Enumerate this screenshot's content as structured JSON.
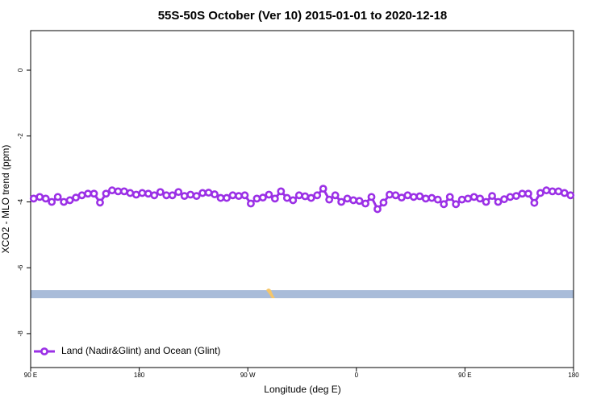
{
  "chart_data": {
    "type": "line",
    "title": "55S-50S October (Ver 10)   2015-01-01 to 2020-12-18",
    "x_label": "Longitude (deg E)",
    "y_label": "XCO2 - MLO trend (ppm)",
    "xlim": [
      90,
      540
    ],
    "ylim": [
      -9.03,
      1.2
    ],
    "xticks": [
      {
        "value": 90,
        "label": "90 E"
      },
      180,
      {
        "value": 270,
        "label": "90 W"
      },
      {
        "value": 360,
        "label": "0"
      },
      {
        "value": 450,
        "label": "90 E"
      },
      {
        "value": 540,
        "label": "180"
      }
    ],
    "yticks": [
      0,
      -2,
      -4,
      -6,
      -8
    ],
    "legend_position": "bottom-left",
    "series": [
      {
        "name": "Land (Nadir&Glint) and Ocean (Glint)",
        "color": "#9b30e6",
        "x": [
          92.5,
          97.5,
          102.5,
          107.5,
          112.5,
          117.5,
          122.5,
          127.5,
          132.5,
          137.5,
          142.5,
          147.5,
          152.5,
          157.5,
          162.5,
          167.5,
          172.5,
          177.5,
          182.5,
          187.5,
          192.5,
          197.5,
          202.5,
          207.5,
          212.5,
          217.5,
          222.5,
          227.5,
          232.5,
          237.5,
          242.5,
          247.5,
          252.5,
          257.5,
          262.5,
          267.5,
          272.5,
          277.5,
          282.5,
          287.5,
          292.5,
          297.5,
          302.5,
          307.5,
          312.5,
          317.5,
          322.5,
          327.5,
          332.5,
          337.5,
          342.5,
          347.5,
          352.5,
          357.5,
          362.5,
          367.5,
          372.5,
          377.5,
          382.5,
          387.5,
          392.5,
          397.5,
          402.5,
          407.5,
          412.5,
          417.5,
          422.5,
          427.5,
          432.5,
          437.5,
          442.5,
          447.5,
          452.5,
          457.5,
          462.5,
          467.5,
          472.5,
          477.5,
          482.5,
          487.5,
          492.5,
          497.5,
          502.5,
          507.5,
          512.5,
          517.5,
          522.5,
          527.5,
          532.5,
          537.5
        ],
        "values": [
          -3.9,
          -3.85,
          -3.9,
          -4.0,
          -3.85,
          -4.0,
          -3.95,
          -3.87,
          -3.8,
          -3.75,
          -3.75,
          -4.02,
          -3.75,
          -3.65,
          -3.68,
          -3.68,
          -3.73,
          -3.78,
          -3.73,
          -3.75,
          -3.8,
          -3.7,
          -3.8,
          -3.8,
          -3.7,
          -3.82,
          -3.78,
          -3.82,
          -3.73,
          -3.72,
          -3.77,
          -3.88,
          -3.88,
          -3.8,
          -3.82,
          -3.8,
          -4.05,
          -3.9,
          -3.87,
          -3.78,
          -3.9,
          -3.68,
          -3.88,
          -3.95,
          -3.8,
          -3.83,
          -3.88,
          -3.8,
          -3.6,
          -3.93,
          -3.8,
          -4.0,
          -3.9,
          -3.95,
          -3.97,
          -4.05,
          -3.85,
          -4.22,
          -4.02,
          -3.78,
          -3.8,
          -3.87,
          -3.8,
          -3.85,
          -3.83,
          -3.9,
          -3.88,
          -3.93,
          -4.07,
          -3.85,
          -4.07,
          -3.93,
          -3.9,
          -3.85,
          -3.9,
          -4.0,
          -3.82,
          -4.0,
          -3.92,
          -3.85,
          -3.82,
          -3.75,
          -3.75,
          -4.03,
          -3.73,
          -3.65,
          -3.68,
          -3.68,
          -3.73,
          -3.8
        ]
      }
    ]
  }
}
